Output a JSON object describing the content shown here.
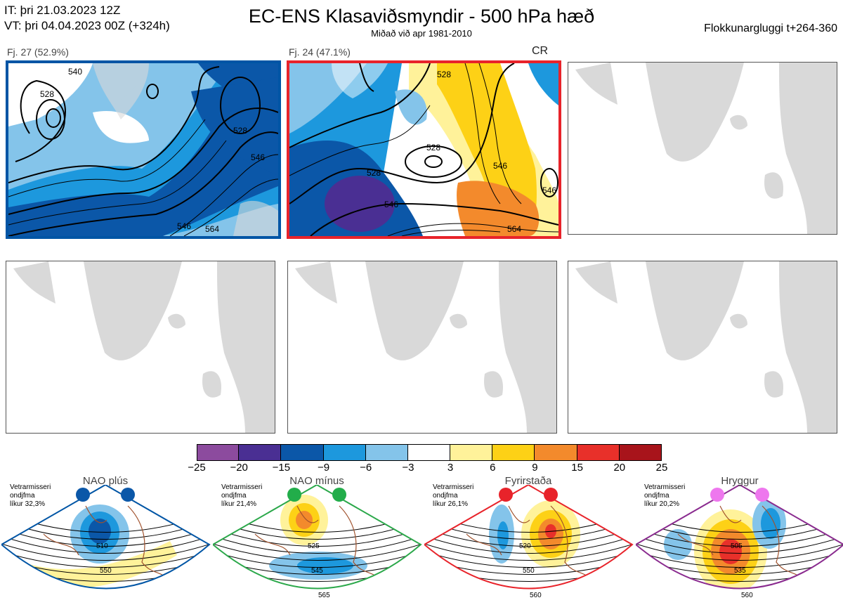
{
  "header": {
    "it_line": "IT: þri 21.03.2023 12Z",
    "vt_line": "VT: þri 04.04.2023 00Z  (+324h)",
    "title": "EC-ENS Klasaviðsmyndir - 500 hPa hæð",
    "subtitle": "Miðað við apr 1981-2010",
    "window": "Flokkunargluggi t+264-360"
  },
  "clusters": [
    {
      "label": "Fj. 27 (52.9%)",
      "members": 27,
      "percent": 52.9,
      "frame_color": "#0055a5",
      "contour_labels": [
        "528",
        "528",
        "546",
        "546",
        "564",
        "540"
      ]
    },
    {
      "label": "Fj. 24 (47.1%)",
      "members": 24,
      "percent": 47.1,
      "frame_color": "#e8232a",
      "regime": "CR",
      "contour_labels": [
        "528",
        "528",
        "528",
        "546",
        "546",
        "564",
        "546"
      ]
    }
  ],
  "colorbar": {
    "ticks": [
      "−25",
      "−20",
      "−15",
      "−9",
      "−6",
      "−3",
      "3",
      "6",
      "9",
      "15",
      "20",
      "25"
    ],
    "colors": [
      "#8c4b9e",
      "#4a2f93",
      "#0b57a8",
      "#1d98dd",
      "#84c4ea",
      "#ffffff",
      "#fff29a",
      "#fdd116",
      "#f38a2c",
      "#e8302a",
      "#a8141b"
    ]
  },
  "regimes": [
    {
      "name": "NAO plús",
      "note_lines": [
        "Vetrarmisseri",
        "ondjfma",
        "líkur 32,3%"
      ],
      "frame_color": "#0055a5",
      "dot_color": "#0b57a8",
      "contour_labels": [
        "510",
        "550"
      ]
    },
    {
      "name": "NAO mínus",
      "note_lines": [
        "Vetrarmisseri",
        "ondjfma",
        "líkur 21,4%"
      ],
      "frame_color": "#2ba84a",
      "dot_color": "#22ad4a",
      "contour_labels": [
        "525",
        "545",
        "565"
      ]
    },
    {
      "name": "Fyrirstaða",
      "note_lines": [
        "Vetrarmisseri",
        "ondjfma",
        "líkur 26,1%"
      ],
      "frame_color": "#e8232a",
      "dot_color": "#e8232a",
      "contour_labels": [
        "520",
        "550",
        "560"
      ]
    },
    {
      "name": "Hryggur",
      "note_lines": [
        "Vetrarmisseri",
        "ondjfma",
        "líkur 20,2%"
      ],
      "frame_color": "#8a2b8f",
      "dot_color": "#ee77ee",
      "contour_labels": [
        "505",
        "535",
        "560"
      ]
    }
  ]
}
